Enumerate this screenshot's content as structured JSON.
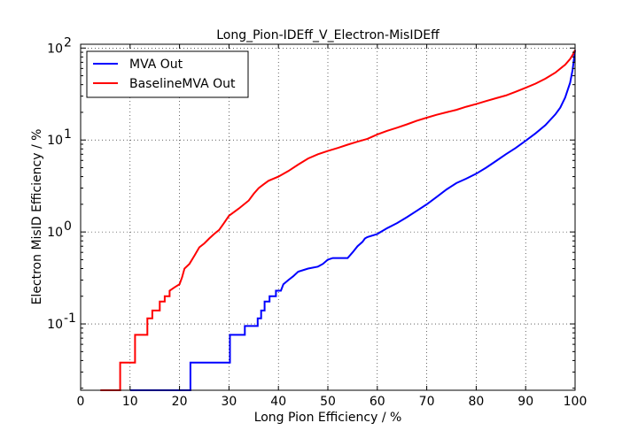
{
  "chart_data": {
    "type": "line",
    "title": "Long_Pion-IDEff_V_Electron-MisIDEff",
    "xlabel": "Long Pion Efficiency / %",
    "ylabel": "Electron MisID Efficiency / %",
    "xlim": [
      0,
      100
    ],
    "ylim": [
      0.019,
      110
    ],
    "yscale": "log",
    "grid": true,
    "legend_position": "top-left",
    "x_ticks": [
      "0",
      "10",
      "20",
      "30",
      "40",
      "50",
      "60",
      "70",
      "80",
      "90",
      "100"
    ],
    "y_ticks": [
      {
        "base": "10",
        "exp": "-1",
        "value": 0.1
      },
      {
        "base": "10",
        "exp": "0",
        "value": 1
      },
      {
        "base": "10",
        "exp": "1",
        "value": 10
      },
      {
        "base": "10",
        "exp": "2",
        "value": 100
      }
    ],
    "series": [
      {
        "name": "MVA Out",
        "color": "#0000ff",
        "points": [
          [
            10,
            0.019
          ],
          [
            22.2,
            0.019
          ],
          [
            22.2,
            0.038
          ],
          [
            30.2,
            0.038
          ],
          [
            30.2,
            0.076
          ],
          [
            33.2,
            0.076
          ],
          [
            33.2,
            0.095
          ],
          [
            35.8,
            0.095
          ],
          [
            35.8,
            0.115
          ],
          [
            36.5,
            0.115
          ],
          [
            36.5,
            0.14
          ],
          [
            37.2,
            0.14
          ],
          [
            37.2,
            0.175
          ],
          [
            38.2,
            0.175
          ],
          [
            38.2,
            0.2
          ],
          [
            39.5,
            0.2
          ],
          [
            39.5,
            0.23
          ],
          [
            40.5,
            0.23
          ],
          [
            41,
            0.27
          ],
          [
            42,
            0.3
          ],
          [
            43,
            0.33
          ],
          [
            44,
            0.37
          ],
          [
            46,
            0.4
          ],
          [
            48,
            0.42
          ],
          [
            49,
            0.45
          ],
          [
            50,
            0.5
          ],
          [
            51,
            0.52
          ],
          [
            54,
            0.52
          ],
          [
            55,
            0.6
          ],
          [
            56,
            0.7
          ],
          [
            57,
            0.78
          ],
          [
            57.5,
            0.85
          ],
          [
            58,
            0.88
          ],
          [
            60,
            0.95
          ],
          [
            62,
            1.1
          ],
          [
            64,
            1.25
          ],
          [
            66,
            1.45
          ],
          [
            68,
            1.7
          ],
          [
            70,
            2.0
          ],
          [
            72,
            2.4
          ],
          [
            74,
            2.9
          ],
          [
            76,
            3.4
          ],
          [
            78,
            3.8
          ],
          [
            80,
            4.3
          ],
          [
            82,
            5.0
          ],
          [
            84,
            5.9
          ],
          [
            86,
            7.0
          ],
          [
            88,
            8.2
          ],
          [
            90,
            9.8
          ],
          [
            92,
            11.8
          ],
          [
            94,
            14.5
          ],
          [
            96,
            19
          ],
          [
            97,
            22.5
          ],
          [
            98,
            29
          ],
          [
            99,
            42
          ],
          [
            99.5,
            58
          ],
          [
            100,
            95
          ]
        ]
      },
      {
        "name": "BaselineMVA Out",
        "color": "#ff0000",
        "points": [
          [
            4,
            0.019
          ],
          [
            8,
            0.019
          ],
          [
            8,
            0.038
          ],
          [
            11,
            0.038
          ],
          [
            11,
            0.076
          ],
          [
            13.5,
            0.076
          ],
          [
            13.5,
            0.115
          ],
          [
            14.5,
            0.115
          ],
          [
            14.5,
            0.14
          ],
          [
            16,
            0.14
          ],
          [
            16,
            0.175
          ],
          [
            17,
            0.175
          ],
          [
            17,
            0.2
          ],
          [
            18,
            0.2
          ],
          [
            18,
            0.23
          ],
          [
            19,
            0.25
          ],
          [
            20,
            0.27
          ],
          [
            20.5,
            0.32
          ],
          [
            21,
            0.4
          ],
          [
            22,
            0.45
          ],
          [
            23,
            0.55
          ],
          [
            24,
            0.68
          ],
          [
            25,
            0.75
          ],
          [
            26,
            0.85
          ],
          [
            27,
            0.95
          ],
          [
            28,
            1.05
          ],
          [
            29,
            1.25
          ],
          [
            30,
            1.5
          ],
          [
            32,
            1.8
          ],
          [
            34,
            2.2
          ],
          [
            35,
            2.6
          ],
          [
            36,
            3.0
          ],
          [
            37,
            3.3
          ],
          [
            38,
            3.6
          ],
          [
            40,
            4.0
          ],
          [
            42,
            4.6
          ],
          [
            44,
            5.4
          ],
          [
            46,
            6.3
          ],
          [
            48,
            7.0
          ],
          [
            50,
            7.6
          ],
          [
            52,
            8.2
          ],
          [
            54,
            8.9
          ],
          [
            56,
            9.6
          ],
          [
            58,
            10.3
          ],
          [
            60,
            11.5
          ],
          [
            62,
            12.6
          ],
          [
            64,
            13.6
          ],
          [
            66,
            14.8
          ],
          [
            68,
            16.2
          ],
          [
            70,
            17.5
          ],
          [
            72,
            18.8
          ],
          [
            74,
            20
          ],
          [
            76,
            21.3
          ],
          [
            78,
            23
          ],
          [
            80,
            24.6
          ],
          [
            82,
            26.5
          ],
          [
            84,
            28.5
          ],
          [
            86,
            30.5
          ],
          [
            88,
            33.5
          ],
          [
            90,
            37
          ],
          [
            92,
            41
          ],
          [
            94,
            46.5
          ],
          [
            96,
            54
          ],
          [
            98,
            66
          ],
          [
            99,
            76
          ],
          [
            99.5,
            84
          ],
          [
            100,
            95
          ]
        ]
      }
    ]
  }
}
